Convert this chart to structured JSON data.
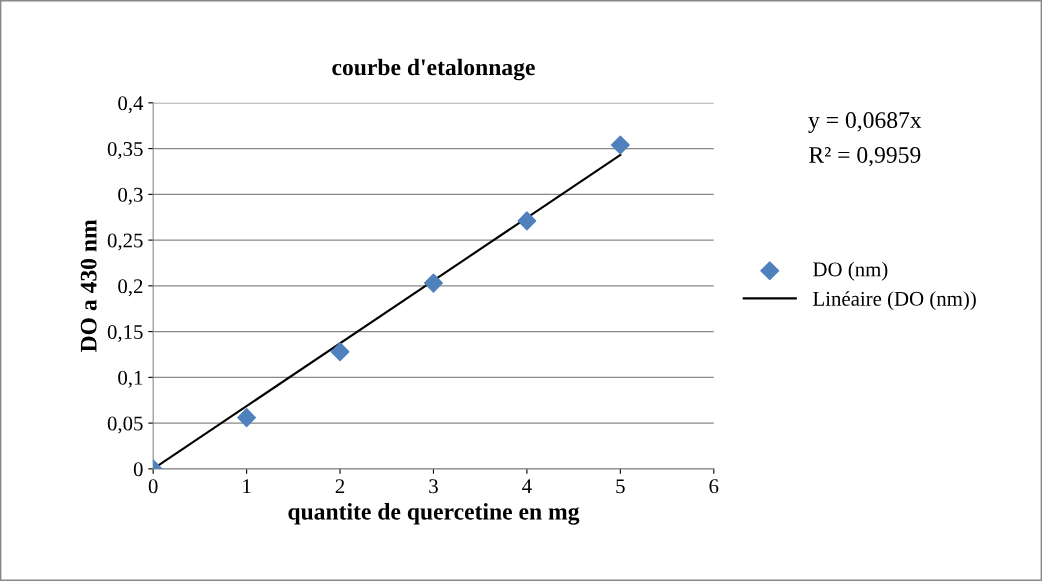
{
  "chart_data": {
    "type": "scatter",
    "title": "courbe d'etalonnage",
    "xlabel": "quantite de quercetine en mg",
    "ylabel": "DO a 430 nm",
    "series": [
      {
        "name": "DO (nm)",
        "color": "#4f81bd",
        "marker": "diamond",
        "x": [
          0,
          1,
          2,
          3,
          4,
          5
        ],
        "values": [
          0,
          0.056,
          0.128,
          0.203,
          0.271,
          0.354
        ]
      },
      {
        "name": "Linéaire (DO (nm))",
        "type": "line",
        "color": "#000000",
        "marker": "none",
        "line_style": "solid",
        "x": [
          0,
          5
        ],
        "values": [
          0,
          0.343
        ]
      }
    ],
    "annotations": [
      "y = 0,0687x",
      "R² = 0,9959"
    ],
    "xlim": [
      0,
      6
    ],
    "xticks": [
      0,
      1,
      2,
      3,
      4,
      5,
      6
    ],
    "ylim": [
      0,
      0.4
    ],
    "yticks": [
      {
        "value": 0,
        "label": "0"
      },
      {
        "value": 0.05,
        "label": "0,05"
      },
      {
        "value": 0.1,
        "label": "0,1"
      },
      {
        "value": 0.15,
        "label": "0,15"
      },
      {
        "value": 0.2,
        "label": "0,2"
      },
      {
        "value": 0.25,
        "label": "0,25"
      },
      {
        "value": 0.3,
        "label": "0,3"
      },
      {
        "value": 0.35,
        "label": "0,35"
      },
      {
        "value": 0.4,
        "label": "0,4"
      }
    ],
    "grid": "y",
    "legend": "right"
  }
}
